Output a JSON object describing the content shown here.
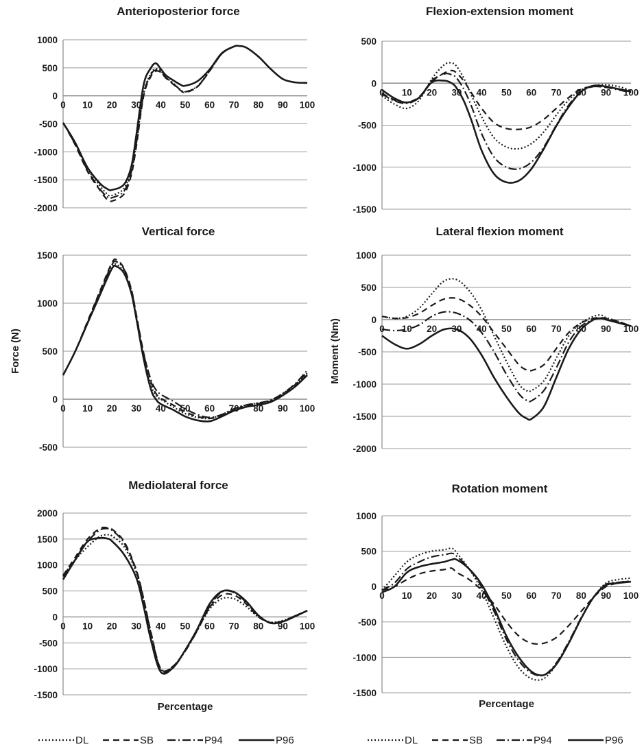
{
  "legend_left": [
    "DL",
    "SB",
    "P94",
    "P96"
  ],
  "legend_right": [
    "DL",
    "SB",
    "P94",
    "P96"
  ],
  "chart_data": [
    {
      "type": "line",
      "title": "Anterioposterior force",
      "xlabel": "",
      "ylabel": "",
      "ylim": [
        -2000,
        1000
      ],
      "yticks": [
        1000,
        500,
        0,
        -500,
        -1000,
        -1500,
        -2000
      ],
      "xticks": [
        0,
        10,
        20,
        30,
        40,
        50,
        60,
        70,
        80,
        90,
        100
      ],
      "grid": true,
      "x": [
        0,
        5,
        10,
        15,
        18,
        20,
        25,
        28,
        30,
        33,
        36,
        38,
        40,
        42,
        45,
        48,
        50,
        55,
        60,
        65,
        70,
        72,
        75,
        80,
        85,
        90,
        95,
        100
      ],
      "series": [
        {
          "name": "DL",
          "values": [
            -480,
            -850,
            -1300,
            -1600,
            -1750,
            -1780,
            -1650,
            -1300,
            -800,
            50,
            400,
            480,
            450,
            330,
            230,
            110,
            70,
            170,
            450,
            750,
            880,
            890,
            860,
            700,
            480,
            300,
            240,
            230
          ]
        },
        {
          "name": "SB",
          "values": [
            -480,
            -880,
            -1350,
            -1680,
            -1850,
            -1880,
            -1750,
            -1400,
            -900,
            0,
            350,
            440,
            420,
            320,
            210,
            100,
            60,
            160,
            440,
            750,
            880,
            890,
            860,
            700,
            480,
            300,
            240,
            230
          ]
        },
        {
          "name": "P94",
          "values": [
            -480,
            -870,
            -1330,
            -1660,
            -1800,
            -1820,
            -1700,
            -1350,
            -850,
            30,
            380,
            460,
            430,
            330,
            220,
            110,
            70,
            165,
            445,
            750,
            880,
            890,
            860,
            700,
            480,
            300,
            240,
            230
          ]
        },
        {
          "name": "P96",
          "values": [
            -480,
            -840,
            -1280,
            -1560,
            -1660,
            -1680,
            -1580,
            -1250,
            -700,
            200,
            500,
            580,
            480,
            370,
            280,
            200,
            180,
            260,
            470,
            760,
            880,
            890,
            860,
            700,
            480,
            300,
            240,
            230
          ]
        }
      ]
    },
    {
      "type": "line",
      "title": "Flexion-extension moment",
      "xlabel": "",
      "ylabel": "",
      "ylim": [
        -1500,
        500
      ],
      "yticks": [
        500,
        0,
        -500,
        -1000,
        -1500
      ],
      "xticks": [
        0,
        10,
        20,
        30,
        40,
        50,
        60,
        70,
        80,
        90,
        100
      ],
      "grid": true,
      "x": [
        0,
        5,
        10,
        15,
        20,
        25,
        28,
        30,
        33,
        36,
        40,
        45,
        50,
        55,
        60,
        65,
        70,
        75,
        80,
        85,
        90,
        95,
        100
      ],
      "series": [
        {
          "name": "DL",
          "values": [
            -150,
            -250,
            -300,
            -200,
            50,
            220,
            240,
            200,
            50,
            -150,
            -400,
            -650,
            -760,
            -780,
            -720,
            -580,
            -380,
            -200,
            -80,
            -30,
            -20,
            -40,
            -90
          ]
        },
        {
          "name": "SB",
          "values": [
            -120,
            -200,
            -230,
            -160,
            20,
            120,
            150,
            120,
            20,
            -120,
            -300,
            -470,
            -540,
            -550,
            -520,
            -430,
            -300,
            -170,
            -70,
            -40,
            -50,
            -70,
            -100
          ]
        },
        {
          "name": "P94",
          "values": [
            -130,
            -210,
            -240,
            -170,
            30,
            110,
            100,
            60,
            -80,
            -280,
            -600,
            -880,
            -1000,
            -1020,
            -940,
            -760,
            -500,
            -260,
            -100,
            -40,
            -50,
            -80,
            -110
          ]
        },
        {
          "name": "P96",
          "values": [
            -80,
            -180,
            -230,
            -170,
            10,
            30,
            0,
            -60,
            -220,
            -450,
            -800,
            -1080,
            -1180,
            -1160,
            -1020,
            -780,
            -510,
            -280,
            -100,
            -30,
            -40,
            -70,
            -100
          ]
        }
      ]
    },
    {
      "type": "line",
      "title": "Vertical force",
      "xlabel": "",
      "ylabel": "Force (N)",
      "ylim": [
        -500,
        1500
      ],
      "yticks": [
        1500,
        1000,
        500,
        0,
        -500
      ],
      "xticks": [
        0,
        10,
        20,
        30,
        40,
        50,
        60,
        70,
        80,
        90,
        100
      ],
      "grid": true,
      "x": [
        0,
        5,
        10,
        15,
        20,
        22,
        25,
        28,
        30,
        33,
        36,
        38,
        40,
        45,
        50,
        55,
        60,
        65,
        70,
        75,
        80,
        85,
        90,
        95,
        100
      ],
      "series": [
        {
          "name": "DL",
          "values": [
            250,
            500,
            800,
            1100,
            1380,
            1400,
            1320,
            1100,
            850,
            450,
            150,
            40,
            0,
            -80,
            -150,
            -190,
            -200,
            -160,
            -100,
            -60,
            -40,
            -10,
            60,
            150,
            270
          ]
        },
        {
          "name": "SB",
          "values": [
            250,
            500,
            810,
            1120,
            1420,
            1450,
            1360,
            1140,
            880,
            480,
            180,
            60,
            10,
            -60,
            -130,
            -180,
            -200,
            -170,
            -110,
            -70,
            -50,
            -20,
            50,
            150,
            280
          ]
        },
        {
          "name": "P94",
          "values": [
            250,
            500,
            800,
            1110,
            1400,
            1430,
            1350,
            1130,
            870,
            470,
            200,
            100,
            50,
            -20,
            -100,
            -160,
            -190,
            -160,
            -100,
            -60,
            -40,
            -10,
            60,
            160,
            300
          ]
        },
        {
          "name": "P96",
          "values": [
            250,
            500,
            790,
            1080,
            1360,
            1380,
            1310,
            1100,
            840,
            420,
            100,
            0,
            -50,
            -110,
            -180,
            -220,
            -230,
            -180,
            -120,
            -80,
            -60,
            -30,
            40,
            130,
            250
          ]
        }
      ]
    },
    {
      "type": "line",
      "title": "Lateral flexion moment",
      "xlabel": "",
      "ylabel": "Moment (Nm)",
      "ylim": [
        -2000,
        1000
      ],
      "yticks": [
        1000,
        500,
        0,
        -500,
        -1000,
        -1500,
        -2000
      ],
      "xticks": [
        0,
        10,
        20,
        30,
        40,
        50,
        60,
        70,
        80,
        90,
        100
      ],
      "grid": true,
      "x": [
        0,
        5,
        10,
        15,
        20,
        25,
        30,
        35,
        40,
        45,
        50,
        55,
        58,
        60,
        65,
        70,
        75,
        80,
        85,
        88,
        90,
        95,
        100
      ],
      "series": [
        {
          "name": "DL",
          "values": [
            50,
            20,
            50,
            180,
            400,
            600,
            620,
            450,
            150,
            -250,
            -650,
            -1000,
            -1100,
            -1100,
            -950,
            -600,
            -250,
            -50,
            50,
            70,
            30,
            -30,
            -100
          ]
        },
        {
          "name": "SB",
          "values": [
            50,
            20,
            30,
            100,
            220,
            320,
            330,
            230,
            50,
            -200,
            -450,
            -700,
            -780,
            -790,
            -700,
            -450,
            -200,
            -50,
            20,
            30,
            20,
            -30,
            -100
          ]
        },
        {
          "name": "P94",
          "values": [
            -150,
            -170,
            -150,
            -80,
            50,
            120,
            100,
            0,
            -200,
            -500,
            -850,
            -1150,
            -1250,
            -1260,
            -1100,
            -750,
            -350,
            -100,
            0,
            20,
            0,
            -50,
            -100
          ]
        },
        {
          "name": "P96",
          "values": [
            -250,
            -380,
            -450,
            -380,
            -250,
            -150,
            -150,
            -280,
            -550,
            -900,
            -1200,
            -1450,
            -1530,
            -1540,
            -1350,
            -900,
            -450,
            -150,
            0,
            20,
            0,
            -50,
            -100
          ]
        }
      ]
    },
    {
      "type": "line",
      "title": "Mediolateral force",
      "xlabel": "Percentage",
      "ylabel": "",
      "ylim": [
        -1500,
        2000
      ],
      "yticks": [
        2000,
        1500,
        1000,
        500,
        0,
        -500,
        -1000,
        -1500
      ],
      "xticks": [
        0,
        10,
        20,
        30,
        40,
        50,
        60,
        70,
        80,
        90,
        100
      ],
      "grid": true,
      "x": [
        0,
        5,
        10,
        15,
        18,
        20,
        25,
        30,
        33,
        36,
        40,
        45,
        50,
        55,
        60,
        65,
        70,
        75,
        80,
        85,
        90,
        95,
        100
      ],
      "series": [
        {
          "name": "DL",
          "values": [
            800,
            1100,
            1350,
            1550,
            1580,
            1560,
            1350,
            850,
            300,
            -350,
            -1000,
            -950,
            -650,
            -250,
            150,
            350,
            350,
            200,
            0,
            -100,
            -70,
            20,
            120
          ]
        },
        {
          "name": "SB",
          "values": [
            800,
            1150,
            1500,
            1700,
            1720,
            1690,
            1450,
            900,
            350,
            -300,
            -1000,
            -950,
            -650,
            -250,
            180,
            420,
            420,
            250,
            0,
            -110,
            -80,
            20,
            120
          ]
        },
        {
          "name": "P94",
          "values": [
            780,
            1100,
            1450,
            1670,
            1700,
            1670,
            1420,
            880,
            330,
            -320,
            -1020,
            -960,
            -660,
            -260,
            200,
            480,
            470,
            280,
            20,
            -110,
            -80,
            20,
            120
          ]
        },
        {
          "name": "P96",
          "values": [
            720,
            1100,
            1450,
            1520,
            1510,
            1460,
            1200,
            750,
            200,
            -450,
            -1060,
            -980,
            -640,
            -230,
            250,
            490,
            480,
            300,
            30,
            -120,
            -90,
            10,
            120
          ]
        }
      ]
    },
    {
      "type": "line",
      "title": "Rotation moment",
      "xlabel": "Percentage",
      "ylabel": "",
      "ylim": [
        -1500,
        1000
      ],
      "yticks": [
        1000,
        500,
        0,
        -500,
        -1000,
        -1500
      ],
      "xticks": [
        0,
        10,
        20,
        30,
        40,
        50,
        60,
        70,
        80,
        90,
        100
      ],
      "grid": true,
      "x": [
        0,
        5,
        10,
        15,
        20,
        25,
        28,
        30,
        35,
        40,
        45,
        50,
        55,
        60,
        65,
        70,
        75,
        80,
        85,
        90,
        95,
        100
      ],
      "series": [
        {
          "name": "DL",
          "values": [
            -50,
            150,
            350,
            450,
            500,
            520,
            540,
            480,
            250,
            -50,
            -450,
            -850,
            -1150,
            -1300,
            -1300,
            -1100,
            -800,
            -450,
            -150,
            50,
            100,
            120
          ]
        },
        {
          "name": "SB",
          "values": [
            -50,
            0,
            100,
            180,
            220,
            240,
            260,
            200,
            100,
            -50,
            -250,
            -500,
            -700,
            -800,
            -800,
            -720,
            -550,
            -350,
            -150,
            0,
            50,
            80
          ]
        },
        {
          "name": "P94",
          "values": [
            -50,
            50,
            250,
            350,
            420,
            450,
            470,
            430,
            250,
            0,
            -350,
            -750,
            -1050,
            -1220,
            -1250,
            -1080,
            -780,
            -440,
            -150,
            30,
            60,
            80
          ]
        },
        {
          "name": "P96",
          "values": [
            -80,
            0,
            200,
            280,
            320,
            350,
            380,
            380,
            250,
            30,
            -300,
            -700,
            -1000,
            -1200,
            -1250,
            -1100,
            -800,
            -450,
            -150,
            20,
            50,
            70
          ]
        }
      ]
    }
  ]
}
